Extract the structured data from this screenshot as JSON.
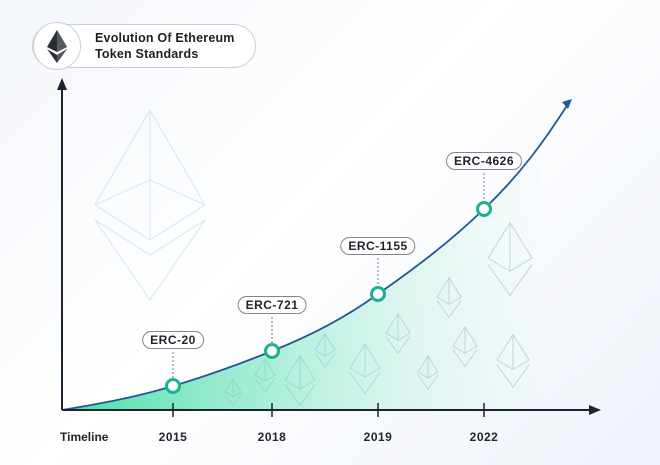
{
  "header": {
    "title_line1": "Evolution Of Ethereum",
    "title_line2": "Token Standards",
    "logo_icon": "ethereum-icon"
  },
  "axis": {
    "x_label": "Timeline"
  },
  "milestones": [
    {
      "year": "2015",
      "standard": "ERC-20"
    },
    {
      "year": "2018",
      "standard": "ERC-721"
    },
    {
      "year": "2019",
      "standard": "ERC-1155"
    },
    {
      "year": "2022",
      "standard": "ERC-4626"
    }
  ],
  "colors": {
    "curve": "#1f5a96",
    "fill": "#3ddc9f",
    "marker": "#18b28f",
    "axis": "#1d2330"
  }
}
